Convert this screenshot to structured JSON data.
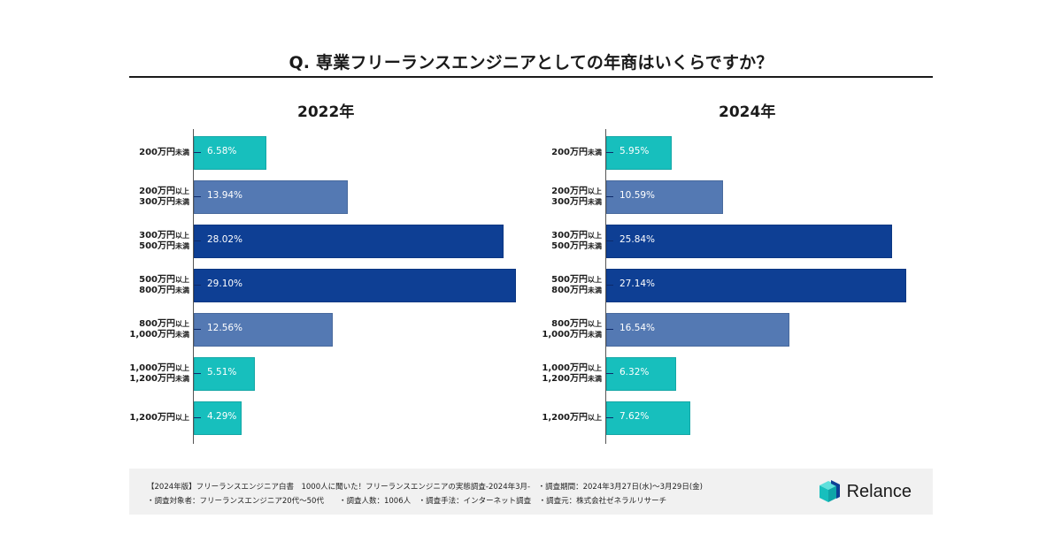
{
  "title": "Q. 専業フリーランスエンジニアとしての年商はいくらですか？",
  "colors": {
    "teal": "#17bfbd",
    "mid_blue": "#5479b3",
    "dark_blue": "#0e3f94",
    "background_footer": "#f1f1f1"
  },
  "chart_data": [
    {
      "type": "bar",
      "orientation": "horizontal",
      "title": "2022年",
      "categories": [
        "200万円未満",
        "200万円以上300万円未満",
        "300万円以上500万円未満",
        "500万円以上800万円未満",
        "800万円以上1,000万円未満",
        "1,000万円以上1,200万円未満",
        "1,200万円以上"
      ],
      "category_lines": [
        [
          {
            "main": "200万円",
            "sub": "未満"
          }
        ],
        [
          {
            "main": "200万円",
            "sub": "以上"
          },
          {
            "main": "300万円",
            "sub": "未満"
          }
        ],
        [
          {
            "main": "300万円",
            "sub": "以上"
          },
          {
            "main": "500万円",
            "sub": "未満"
          }
        ],
        [
          {
            "main": "500万円",
            "sub": "以上"
          },
          {
            "main": "800万円",
            "sub": "未満"
          }
        ],
        [
          {
            "main": "800万円",
            "sub": "以上"
          },
          {
            "main": "1,000万円",
            "sub": "未満"
          }
        ],
        [
          {
            "main": "1,000万円",
            "sub": "以上"
          },
          {
            "main": "1,200万円",
            "sub": "未満"
          }
        ],
        [
          {
            "main": "1,200万円",
            "sub": "以上"
          }
        ]
      ],
      "values": [
        6.58,
        13.94,
        28.02,
        29.1,
        12.56,
        5.51,
        4.29
      ],
      "labels": [
        "6.58%",
        "13.94%",
        "28.02%",
        "29.10%",
        "12.56%",
        "5.51%",
        "4.29%"
      ],
      "bar_colors": [
        "#17bfbd",
        "#5479b3",
        "#0e3f94",
        "#0e3f94",
        "#5479b3",
        "#17bfbd",
        "#17bfbd"
      ],
      "xlim": [
        0,
        30
      ],
      "unit": "%"
    },
    {
      "type": "bar",
      "orientation": "horizontal",
      "title": "2024年",
      "categories": [
        "200万円未満",
        "200万円以上300万円未満",
        "300万円以上500万円未満",
        "500万円以上800万円未満",
        "800万円以上1,000万円未満",
        "1,000万円以上1,200万円未満",
        "1,200万円以上"
      ],
      "category_lines": [
        [
          {
            "main": "200万円",
            "sub": "未満"
          }
        ],
        [
          {
            "main": "200万円",
            "sub": "以上"
          },
          {
            "main": "300万円",
            "sub": "未満"
          }
        ],
        [
          {
            "main": "300万円",
            "sub": "以上"
          },
          {
            "main": "500万円",
            "sub": "未満"
          }
        ],
        [
          {
            "main": "500万円",
            "sub": "以上"
          },
          {
            "main": "800万円",
            "sub": "未満"
          }
        ],
        [
          {
            "main": "800万円",
            "sub": "以上"
          },
          {
            "main": "1,000万円",
            "sub": "未満"
          }
        ],
        [
          {
            "main": "1,000万円",
            "sub": "以上"
          },
          {
            "main": "1,200万円",
            "sub": "未満"
          }
        ],
        [
          {
            "main": "1,200万円",
            "sub": "以上"
          }
        ]
      ],
      "values": [
        5.95,
        10.59,
        25.84,
        27.14,
        16.54,
        6.32,
        7.62
      ],
      "labels": [
        "5.95%",
        "10.59%",
        "25.84%",
        "27.14%",
        "16.54%",
        "6.32%",
        "7.62%"
      ],
      "bar_colors": [
        "#17bfbd",
        "#5479b3",
        "#0e3f94",
        "#0e3f94",
        "#5479b3",
        "#17bfbd",
        "#17bfbd"
      ],
      "xlim": [
        0,
        30
      ],
      "unit": "%"
    }
  ],
  "footer": {
    "line1": "【2024年版】フリーランスエンジニア白書　1000人に聞いた！フリーランスエンジニアの実態調査-2024年3月-　・調査期間：2024年3月27日(水)～3月29日(金)",
    "line2": "・調査対象者：フリーランスエンジニア20代～50代　　・調査人数：1006人　・調査手法：インターネット調査　・調査元：株式会社ゼネラルリサーチ"
  },
  "logo": {
    "icon": "relance-cube-icon",
    "text": "Relance"
  }
}
